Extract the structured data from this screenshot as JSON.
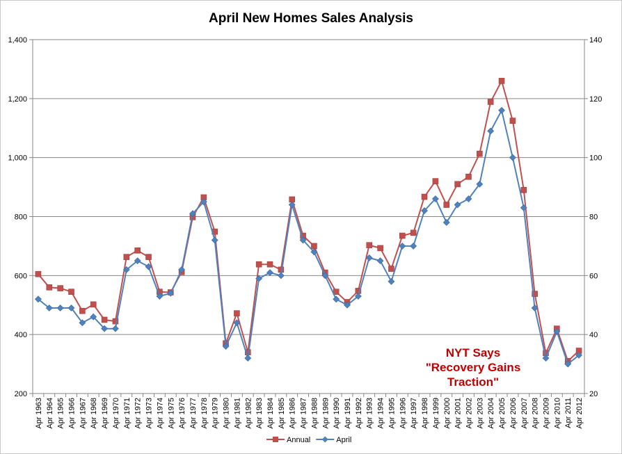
{
  "chart_data": {
    "type": "line",
    "title": "April New Homes Sales Analysis",
    "annotation": [
      "NYT Says",
      "\"Recovery Gains",
      "Traction\""
    ],
    "xlabel": "",
    "ylabel": "",
    "categories": [
      "Apr 1963",
      "Apr 1964",
      "Apr 1965",
      "Apr 1966",
      "Apr 1967",
      "Apr 1968",
      "Apr 1969",
      "Apr 1970",
      "Apr 1971",
      "Apr 1972",
      "Apr 1973",
      "Apr 1974",
      "Apr 1975",
      "Apr 1976",
      "Apr 1977",
      "Apr 1978",
      "Apr 1979",
      "Apr 1980",
      "Apr 1981",
      "Apr 1982",
      "Apr 1983",
      "Apr 1984",
      "Apr 1985",
      "Apr 1986",
      "Apr 1987",
      "Apr 1988",
      "Apr 1989",
      "Apr 1990",
      "Apr 1991",
      "Apr 1992",
      "Apr 1993",
      "Apr 1994",
      "Apr 1995",
      "Apr 1996",
      "Apr 1997",
      "Apr 1998",
      "Apr 1999",
      "Apr 2000",
      "Apr 2001",
      "Apr 2002",
      "Apr 2003",
      "Apr 2004",
      "Apr 2005",
      "Apr 2006",
      "Apr 2007",
      "Apr 2008",
      "Apr 2009",
      "Apr 2010",
      "Apr 2011",
      "Apr 2012"
    ],
    "y_left": {
      "min": 200,
      "max": 1400,
      "ticks": [
        200,
        400,
        600,
        800,
        1000,
        1200,
        1400
      ]
    },
    "y_right": {
      "min": 20,
      "max": 140,
      "ticks": [
        20,
        40,
        60,
        80,
        100,
        120,
        140
      ]
    },
    "grid": true,
    "legend_position": "bottom",
    "series": [
      {
        "name": "Annual",
        "axis": "left",
        "color": "#c0504d",
        "marker": "square",
        "values": [
          605,
          560,
          557,
          545,
          480,
          502,
          450,
          445,
          663,
          685,
          663,
          545,
          543,
          612,
          798,
          865,
          749,
          370,
          472,
          340,
          638,
          638,
          620,
          858,
          735,
          700,
          610,
          545,
          510,
          548,
          703,
          693,
          623,
          735,
          745,
          867,
          920,
          840,
          910,
          935,
          1013,
          1189,
          1260,
          1125,
          890,
          538,
          337,
          420,
          310,
          345
        ]
      },
      {
        "name": "April",
        "axis": "right",
        "color": "#4f81bd",
        "marker": "diamond",
        "values": [
          52,
          49,
          49,
          49,
          44,
          46,
          42,
          42,
          62,
          65,
          63,
          53,
          54,
          62,
          81,
          85,
          72,
          36,
          44,
          32,
          59,
          61,
          60,
          84,
          72,
          68,
          60,
          52,
          50,
          53,
          66,
          65,
          58,
          70,
          70,
          82,
          86,
          78,
          84,
          86,
          91,
          109,
          116,
          100,
          83,
          49,
          32,
          41,
          30,
          33
        ]
      }
    ]
  }
}
